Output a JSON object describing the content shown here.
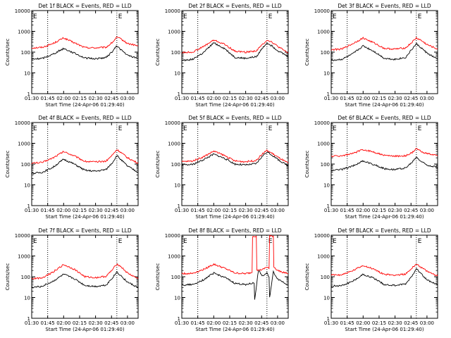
{
  "chart_data": [
    {
      "type": "line",
      "title": "Det 1f BLACK = Events, RED = LLD",
      "xlabel": "Start Time (24-Apr-06 01:29:40)",
      "ylabel": "Counts/sec",
      "x_ticks": [
        "01:30",
        "01:45",
        "02:00",
        "02:15",
        "02:30",
        "02:45",
        "03:00"
      ],
      "y_ticks": [
        "1",
        "10",
        "100",
        "1000",
        "10000"
      ],
      "y_scale": "log",
      "ylim": [
        1,
        10000
      ],
      "xlim_minutes": [
        0,
        100
      ],
      "annotations": [
        "E",
        "E"
      ],
      "markers_minutes": [
        15,
        80
      ],
      "series": [
        {
          "color": "#ff0000",
          "x_minutes": [
            0,
            10,
            20,
            30,
            40,
            50,
            60,
            70,
            76,
            80,
            84,
            90,
            100
          ],
          "values": [
            160,
            170,
            260,
            480,
            280,
            165,
            160,
            170,
            300,
            520,
            420,
            260,
            200
          ]
        },
        {
          "color": "#000000",
          "x_minutes": [
            0,
            10,
            20,
            30,
            40,
            50,
            60,
            70,
            76,
            80,
            84,
            90,
            100
          ],
          "values": [
            45,
            50,
            80,
            150,
            90,
            52,
            48,
            55,
            110,
            200,
            130,
            70,
            50
          ]
        }
      ]
    },
    {
      "type": "line",
      "title": "Det 2f BLACK = Events, RED = LLD",
      "xlabel": "Start Time (24-Apr-06 01:29:40)",
      "ylabel": "Counts/sec",
      "x_ticks": [
        "01:30",
        "01:45",
        "02:00",
        "02:15",
        "02:30",
        "02:45",
        "03:00"
      ],
      "y_ticks": [
        "1",
        "10",
        "100",
        "1000",
        "10000"
      ],
      "y_scale": "log",
      "ylim": [
        1,
        10000
      ],
      "xlim_minutes": [
        0,
        100
      ],
      "annotations": [
        "E",
        "E"
      ],
      "markers_minutes": [
        15,
        80
      ],
      "series": [
        {
          "color": "#ff0000",
          "x_minutes": [
            0,
            10,
            20,
            30,
            40,
            50,
            60,
            70,
            76,
            80,
            84,
            90,
            100
          ],
          "values": [
            95,
            100,
            180,
            380,
            240,
            110,
            100,
            115,
            240,
            380,
            320,
            190,
            90
          ]
        },
        {
          "color": "#000000",
          "x_minutes": [
            0,
            10,
            20,
            30,
            40,
            50,
            60,
            70,
            76,
            80,
            84,
            90,
            100
          ],
          "values": [
            40,
            45,
            90,
            280,
            150,
            55,
            50,
            60,
            160,
            280,
            210,
            120,
            60
          ]
        }
      ]
    },
    {
      "type": "line",
      "title": "Det 3f BLACK = Events, RED = LLD",
      "xlabel": "Start Time (24-Apr-06 01:29:40)",
      "ylabel": "Counts/sec",
      "x_ticks": [
        "01:30",
        "01:45",
        "02:00",
        "02:15",
        "02:30",
        "02:45",
        "03:00"
      ],
      "y_ticks": [
        "1",
        "10",
        "100",
        "1000",
        "10000"
      ],
      "y_scale": "log",
      "ylim": [
        1,
        10000
      ],
      "xlim_minutes": [
        0,
        100
      ],
      "annotations": [
        "E",
        "E"
      ],
      "markers_minutes": [
        15,
        80
      ],
      "series": [
        {
          "color": "#ff0000",
          "x_minutes": [
            0,
            10,
            20,
            30,
            40,
            50,
            60,
            70,
            76,
            80,
            84,
            90,
            100
          ],
          "values": [
            130,
            140,
            250,
            480,
            280,
            150,
            140,
            160,
            300,
            480,
            380,
            230,
            140
          ]
        },
        {
          "color": "#000000",
          "x_minutes": [
            0,
            10,
            20,
            30,
            40,
            50,
            60,
            70,
            76,
            80,
            84,
            90,
            100
          ],
          "values": [
            40,
            45,
            80,
            200,
            110,
            50,
            45,
            55,
            140,
            250,
            170,
            90,
            45
          ]
        }
      ]
    },
    {
      "type": "line",
      "title": "Det 4f BLACK = Events, RED = LLD",
      "xlabel": "Start Time (24-Apr-06 01:29:40)",
      "ylabel": "Counts/sec",
      "x_ticks": [
        "01:30",
        "01:45",
        "02:00",
        "02:15",
        "02:30",
        "02:45",
        "03:00"
      ],
      "y_ticks": [
        "1",
        "10",
        "100",
        "1000",
        "10000"
      ],
      "y_scale": "log",
      "ylim": [
        1,
        10000
      ],
      "xlim_minutes": [
        0,
        100
      ],
      "annotations": [
        "E",
        "E"
      ],
      "markers_minutes": [
        15,
        80
      ],
      "series": [
        {
          "color": "#ff0000",
          "x_minutes": [
            0,
            10,
            20,
            30,
            40,
            50,
            60,
            70,
            76,
            80,
            84,
            90,
            100
          ],
          "values": [
            110,
            120,
            200,
            400,
            250,
            135,
            125,
            140,
            280,
            500,
            360,
            200,
            110
          ]
        },
        {
          "color": "#000000",
          "x_minutes": [
            0,
            10,
            20,
            30,
            40,
            50,
            60,
            70,
            76,
            80,
            84,
            90,
            100
          ],
          "values": [
            35,
            40,
            70,
            170,
            100,
            50,
            45,
            55,
            120,
            260,
            160,
            80,
            40
          ]
        }
      ]
    },
    {
      "type": "line",
      "title": "Det 5f BLACK = Events, RED = LLD",
      "xlabel": "Start Time (24-Apr-06 01:29:40)",
      "ylabel": "Counts/sec",
      "x_ticks": [
        "01:30",
        "01:45",
        "02:00",
        "02:15",
        "02:30",
        "02:45",
        "03:00"
      ],
      "y_ticks": [
        "1",
        "10",
        "100",
        "1000",
        "10000"
      ],
      "y_scale": "log",
      "ylim": [
        1,
        10000
      ],
      "xlim_minutes": [
        0,
        100
      ],
      "annotations": [
        "E",
        "E"
      ],
      "markers_minutes": [
        15,
        80
      ],
      "series": [
        {
          "color": "#ff0000",
          "x_minutes": [
            0,
            10,
            20,
            30,
            40,
            50,
            60,
            70,
            76,
            80,
            84,
            90,
            100
          ],
          "values": [
            130,
            140,
            220,
            420,
            260,
            140,
            130,
            150,
            320,
            450,
            350,
            220,
            110
          ]
        },
        {
          "color": "#000000",
          "x_minutes": [
            0,
            10,
            20,
            30,
            40,
            50,
            60,
            70,
            76,
            80,
            84,
            90,
            100
          ],
          "values": [
            90,
            95,
            160,
            300,
            190,
            100,
            90,
            105,
            250,
            380,
            290,
            170,
            80
          ]
        }
      ]
    },
    {
      "type": "line",
      "title": "Det 6f BLACK = Events, RED = LLD",
      "xlabel": "Start Time (24-Apr-06 01:29:40)",
      "ylabel": "Counts/sec",
      "x_ticks": [
        "01:30",
        "01:45",
        "02:00",
        "02:15",
        "02:30",
        "02:45",
        "03:00"
      ],
      "y_ticks": [
        "1",
        "10",
        "100",
        "1000",
        "10000"
      ],
      "y_scale": "log",
      "ylim": [
        1,
        10000
      ],
      "xlim_minutes": [
        0,
        100
      ],
      "annotations": [
        "E",
        "E"
      ],
      "markers_minutes": [
        15,
        80
      ],
      "series": [
        {
          "color": "#ff0000",
          "x_minutes": [
            0,
            10,
            20,
            30,
            40,
            50,
            60,
            70,
            76,
            80,
            84,
            90,
            100
          ],
          "values": [
            240,
            250,
            320,
            500,
            380,
            260,
            240,
            250,
            350,
            550,
            420,
            320,
            250
          ]
        },
        {
          "color": "#000000",
          "x_minutes": [
            0,
            10,
            20,
            30,
            40,
            50,
            60,
            70,
            76,
            80,
            84,
            90,
            100
          ],
          "values": [
            50,
            55,
            80,
            140,
            95,
            60,
            55,
            65,
            120,
            220,
            140,
            90,
            70
          ]
        }
      ]
    },
    {
      "type": "line",
      "title": "Det 7f BLACK = Events, RED = LLD",
      "xlabel": "Start Time (24-Apr-06 01:29:40)",
      "ylabel": "Counts/sec",
      "x_ticks": [
        "01:30",
        "01:45",
        "02:00",
        "02:15",
        "02:30",
        "02:45",
        "03:00"
      ],
      "y_ticks": [
        "1",
        "10",
        "100",
        "1000",
        "10000"
      ],
      "y_scale": "log",
      "ylim": [
        1,
        10000
      ],
      "xlim_minutes": [
        0,
        100
      ],
      "annotations": [
        "E",
        "E"
      ],
      "markers_minutes": [
        15,
        80
      ],
      "series": [
        {
          "color": "#ff0000",
          "x_minutes": [
            0,
            10,
            20,
            30,
            40,
            50,
            60,
            70,
            76,
            80,
            84,
            90,
            100
          ],
          "values": [
            80,
            90,
            170,
            380,
            230,
            100,
            90,
            105,
            220,
            420,
            300,
            150,
            80
          ]
        },
        {
          "color": "#000000",
          "x_minutes": [
            0,
            10,
            20,
            30,
            40,
            50,
            60,
            70,
            76,
            80,
            84,
            90,
            100
          ],
          "values": [
            30,
            35,
            60,
            130,
            80,
            38,
            34,
            40,
            90,
            170,
            110,
            55,
            30
          ]
        }
      ]
    },
    {
      "type": "line",
      "title": "Det 8f BLACK = Events, RED = LLD",
      "xlabel": "Start Time (24-Apr-06 01:29:40)",
      "ylabel": "Counts/sec",
      "x_ticks": [
        "01:30",
        "01:45",
        "02:00",
        "02:15",
        "02:30",
        "02:45",
        "03:00"
      ],
      "y_ticks": [
        "1",
        "10",
        "100",
        "1000",
        "10000"
      ],
      "y_scale": "log",
      "ylim": [
        1,
        10000
      ],
      "xlim_minutes": [
        0,
        100
      ],
      "annotations": [
        "E",
        "E"
      ],
      "markers_minutes": [
        15,
        80
      ],
      "series": [
        {
          "color": "#ff0000",
          "x_minutes": [
            0,
            10,
            20,
            30,
            40,
            50,
            60,
            66,
            66.5,
            70,
            70.5,
            76,
            80,
            82,
            82.5,
            86,
            86.5,
            90,
            100
          ],
          "values": [
            140,
            145,
            220,
            400,
            260,
            150,
            140,
            160,
            9000,
            9000,
            200,
            220,
            300,
            250,
            9000,
            9000,
            300,
            200,
            140
          ]
        },
        {
          "color": "#000000",
          "x_minutes": [
            0,
            10,
            20,
            30,
            40,
            50,
            60,
            68,
            68.5,
            72,
            76,
            80,
            82,
            82.5,
            86,
            90,
            100
          ],
          "values": [
            40,
            42,
            70,
            150,
            95,
            48,
            42,
            50,
            8,
            200,
            110,
            150,
            90,
            10,
            170,
            80,
            40
          ]
        }
      ]
    },
    {
      "type": "line",
      "title": "Det 9f BLACK = Events, RED = LLD",
      "xlabel": "Start Time (24-Apr-06 01:29:40)",
      "ylabel": "Counts/sec",
      "x_ticks": [
        "01:30",
        "01:45",
        "02:00",
        "02:15",
        "02:30",
        "02:45",
        "03:00"
      ],
      "y_ticks": [
        "1",
        "10",
        "100",
        "1000",
        "10000"
      ],
      "y_scale": "log",
      "ylim": [
        1,
        10000
      ],
      "xlim_minutes": [
        0,
        100
      ],
      "annotations": [
        "E",
        "E"
      ],
      "markers_minutes": [
        15,
        80
      ],
      "series": [
        {
          "color": "#ff0000",
          "x_minutes": [
            0,
            10,
            20,
            30,
            40,
            50,
            60,
            70,
            76,
            80,
            84,
            90,
            100
          ],
          "values": [
            120,
            125,
            190,
            350,
            230,
            130,
            120,
            135,
            260,
            420,
            300,
            180,
            110
          ]
        },
        {
          "color": "#000000",
          "x_minutes": [
            0,
            10,
            20,
            30,
            40,
            50,
            60,
            70,
            76,
            80,
            84,
            90,
            100
          ],
          "values": [
            35,
            38,
            60,
            130,
            85,
            42,
            38,
            45,
            110,
            260,
            150,
            70,
            40
          ]
        }
      ]
    }
  ]
}
